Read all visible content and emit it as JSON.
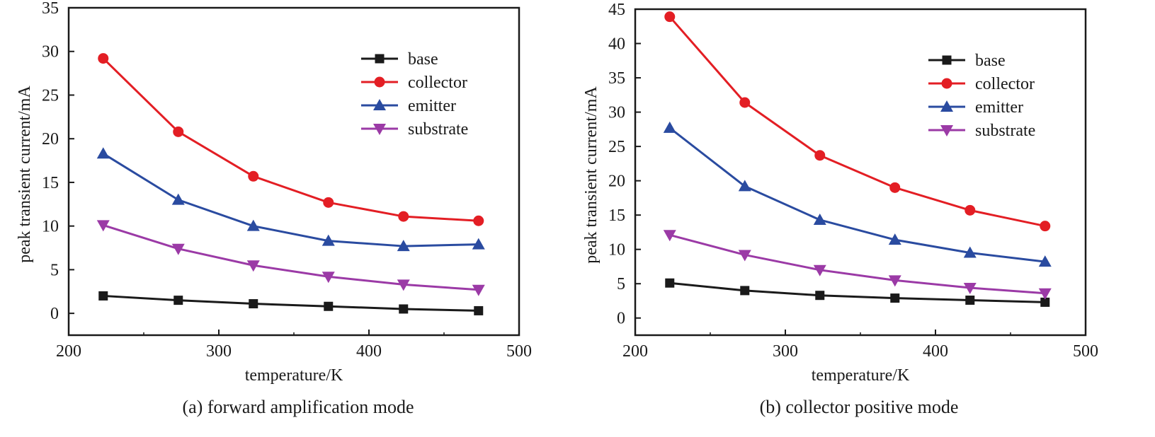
{
  "chart_data": [
    {
      "type": "line",
      "title": "",
      "caption": "(a) forward amplification mode",
      "xlabel": "temperature/K",
      "ylabel": "peak transient current/mA",
      "xlim": [
        200,
        500
      ],
      "ylim": [
        -2.5,
        35
      ],
      "xticks": [
        200,
        300,
        400,
        500
      ],
      "yticks": [
        0,
        5,
        10,
        15,
        20,
        25,
        30,
        35
      ],
      "x": [
        223,
        273,
        323,
        373,
        423,
        473
      ],
      "legend_position": "top-right",
      "grid": false,
      "series": [
        {
          "name": "base",
          "color": "#1a1a1a",
          "marker": "square",
          "values": [
            2.0,
            1.5,
            1.1,
            0.8,
            0.5,
            0.3
          ]
        },
        {
          "name": "collector",
          "color": "#e31e24",
          "marker": "circle",
          "values": [
            29.2,
            20.8,
            15.7,
            12.7,
            11.1,
            10.6
          ]
        },
        {
          "name": "emitter",
          "color": "#2a4ba0",
          "marker": "triangle-up",
          "values": [
            18.3,
            13.0,
            10.0,
            8.3,
            7.7,
            7.9
          ]
        },
        {
          "name": "substrate",
          "color": "#9b3aa6",
          "marker": "triangle-down",
          "values": [
            10.1,
            7.4,
            5.5,
            4.2,
            3.3,
            2.7
          ]
        }
      ]
    },
    {
      "type": "line",
      "title": "",
      "caption": "(b) collector positive mode",
      "xlabel": "temperature/K",
      "ylabel": "peak transient current/mA",
      "xlim": [
        200,
        500
      ],
      "ylim": [
        -2.5,
        45
      ],
      "xticks": [
        200,
        300,
        400,
        500
      ],
      "yticks": [
        0,
        5,
        10,
        15,
        20,
        25,
        30,
        35,
        40,
        45
      ],
      "x": [
        223,
        273,
        323,
        373,
        423,
        473
      ],
      "legend_position": "top-right",
      "grid": false,
      "series": [
        {
          "name": "base",
          "color": "#1a1a1a",
          "marker": "square",
          "values": [
            5.1,
            4.0,
            3.3,
            2.9,
            2.6,
            2.3
          ]
        },
        {
          "name": "collector",
          "color": "#e31e24",
          "marker": "circle",
          "values": [
            43.9,
            31.4,
            23.7,
            19.0,
            15.7,
            13.4
          ]
        },
        {
          "name": "emitter",
          "color": "#2a4ba0",
          "marker": "triangle-up",
          "values": [
            27.7,
            19.2,
            14.3,
            11.4,
            9.5,
            8.2
          ]
        },
        {
          "name": "substrate",
          "color": "#9b3aa6",
          "marker": "triangle-down",
          "values": [
            12.1,
            9.2,
            7.0,
            5.5,
            4.4,
            3.6
          ]
        }
      ]
    }
  ]
}
